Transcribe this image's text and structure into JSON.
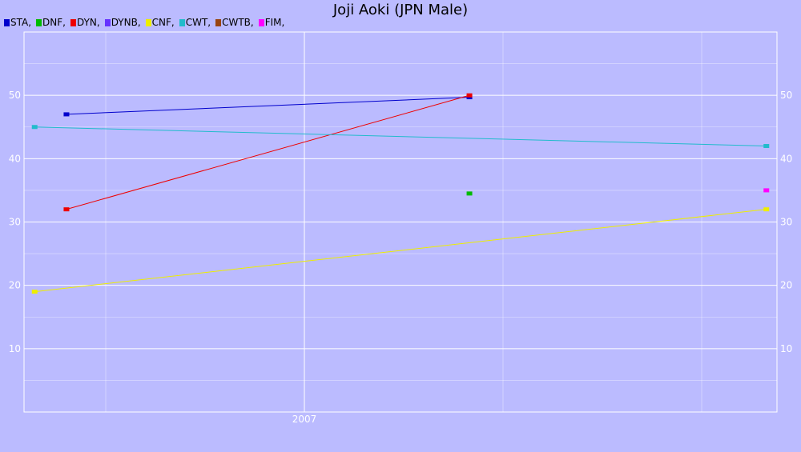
{
  "chart_data": {
    "type": "line",
    "title": "Joji Aoki (JPN Male)",
    "x_tick_labels": [
      "2007"
    ],
    "y_ticks": [
      10,
      20,
      30,
      40,
      50
    ],
    "ylim": [
      0,
      60
    ],
    "grid": true,
    "legend_placement": "top-left",
    "legend": [
      {
        "label": "STA,",
        "color": "#0000cc"
      },
      {
        "label": "DNF,",
        "color": "#00bb00"
      },
      {
        "label": "DYN,",
        "color": "#ee0000"
      },
      {
        "label": "DYNB,",
        "color": "#6633ff"
      },
      {
        "label": "CNF,",
        "color": "#eeee00"
      },
      {
        "label": "CWT,",
        "color": "#22bbcc"
      },
      {
        "label": "CWTB,",
        "color": "#994411"
      },
      {
        "label": "FIM,",
        "color": "#ff00ff"
      }
    ],
    "series": [
      {
        "name": "STA",
        "color": "#0000cc",
        "points": [
          {
            "x": 2005.2,
            "y": 47
          },
          {
            "x": 2009.0,
            "y": 49.7
          }
        ]
      },
      {
        "name": "DNF",
        "color": "#00bb00",
        "points": [
          {
            "x": 2009.0,
            "y": 34.5
          }
        ]
      },
      {
        "name": "DYN",
        "color": "#ee0000",
        "points": [
          {
            "x": 2005.2,
            "y": 32
          },
          {
            "x": 2009.0,
            "y": 50
          }
        ]
      },
      {
        "name": "CNF",
        "color": "#eeee00",
        "points": [
          {
            "x": 2004.9,
            "y": 19
          },
          {
            "x": 2011.8,
            "y": 32
          }
        ]
      },
      {
        "name": "CWT",
        "color": "#22bbcc",
        "points": [
          {
            "x": 2004.9,
            "y": 45
          },
          {
            "x": 2011.8,
            "y": 42
          }
        ]
      },
      {
        "name": "FIM",
        "color": "#ff00ff",
        "points": [
          {
            "x": 2011.8,
            "y": 35
          }
        ]
      }
    ]
  }
}
